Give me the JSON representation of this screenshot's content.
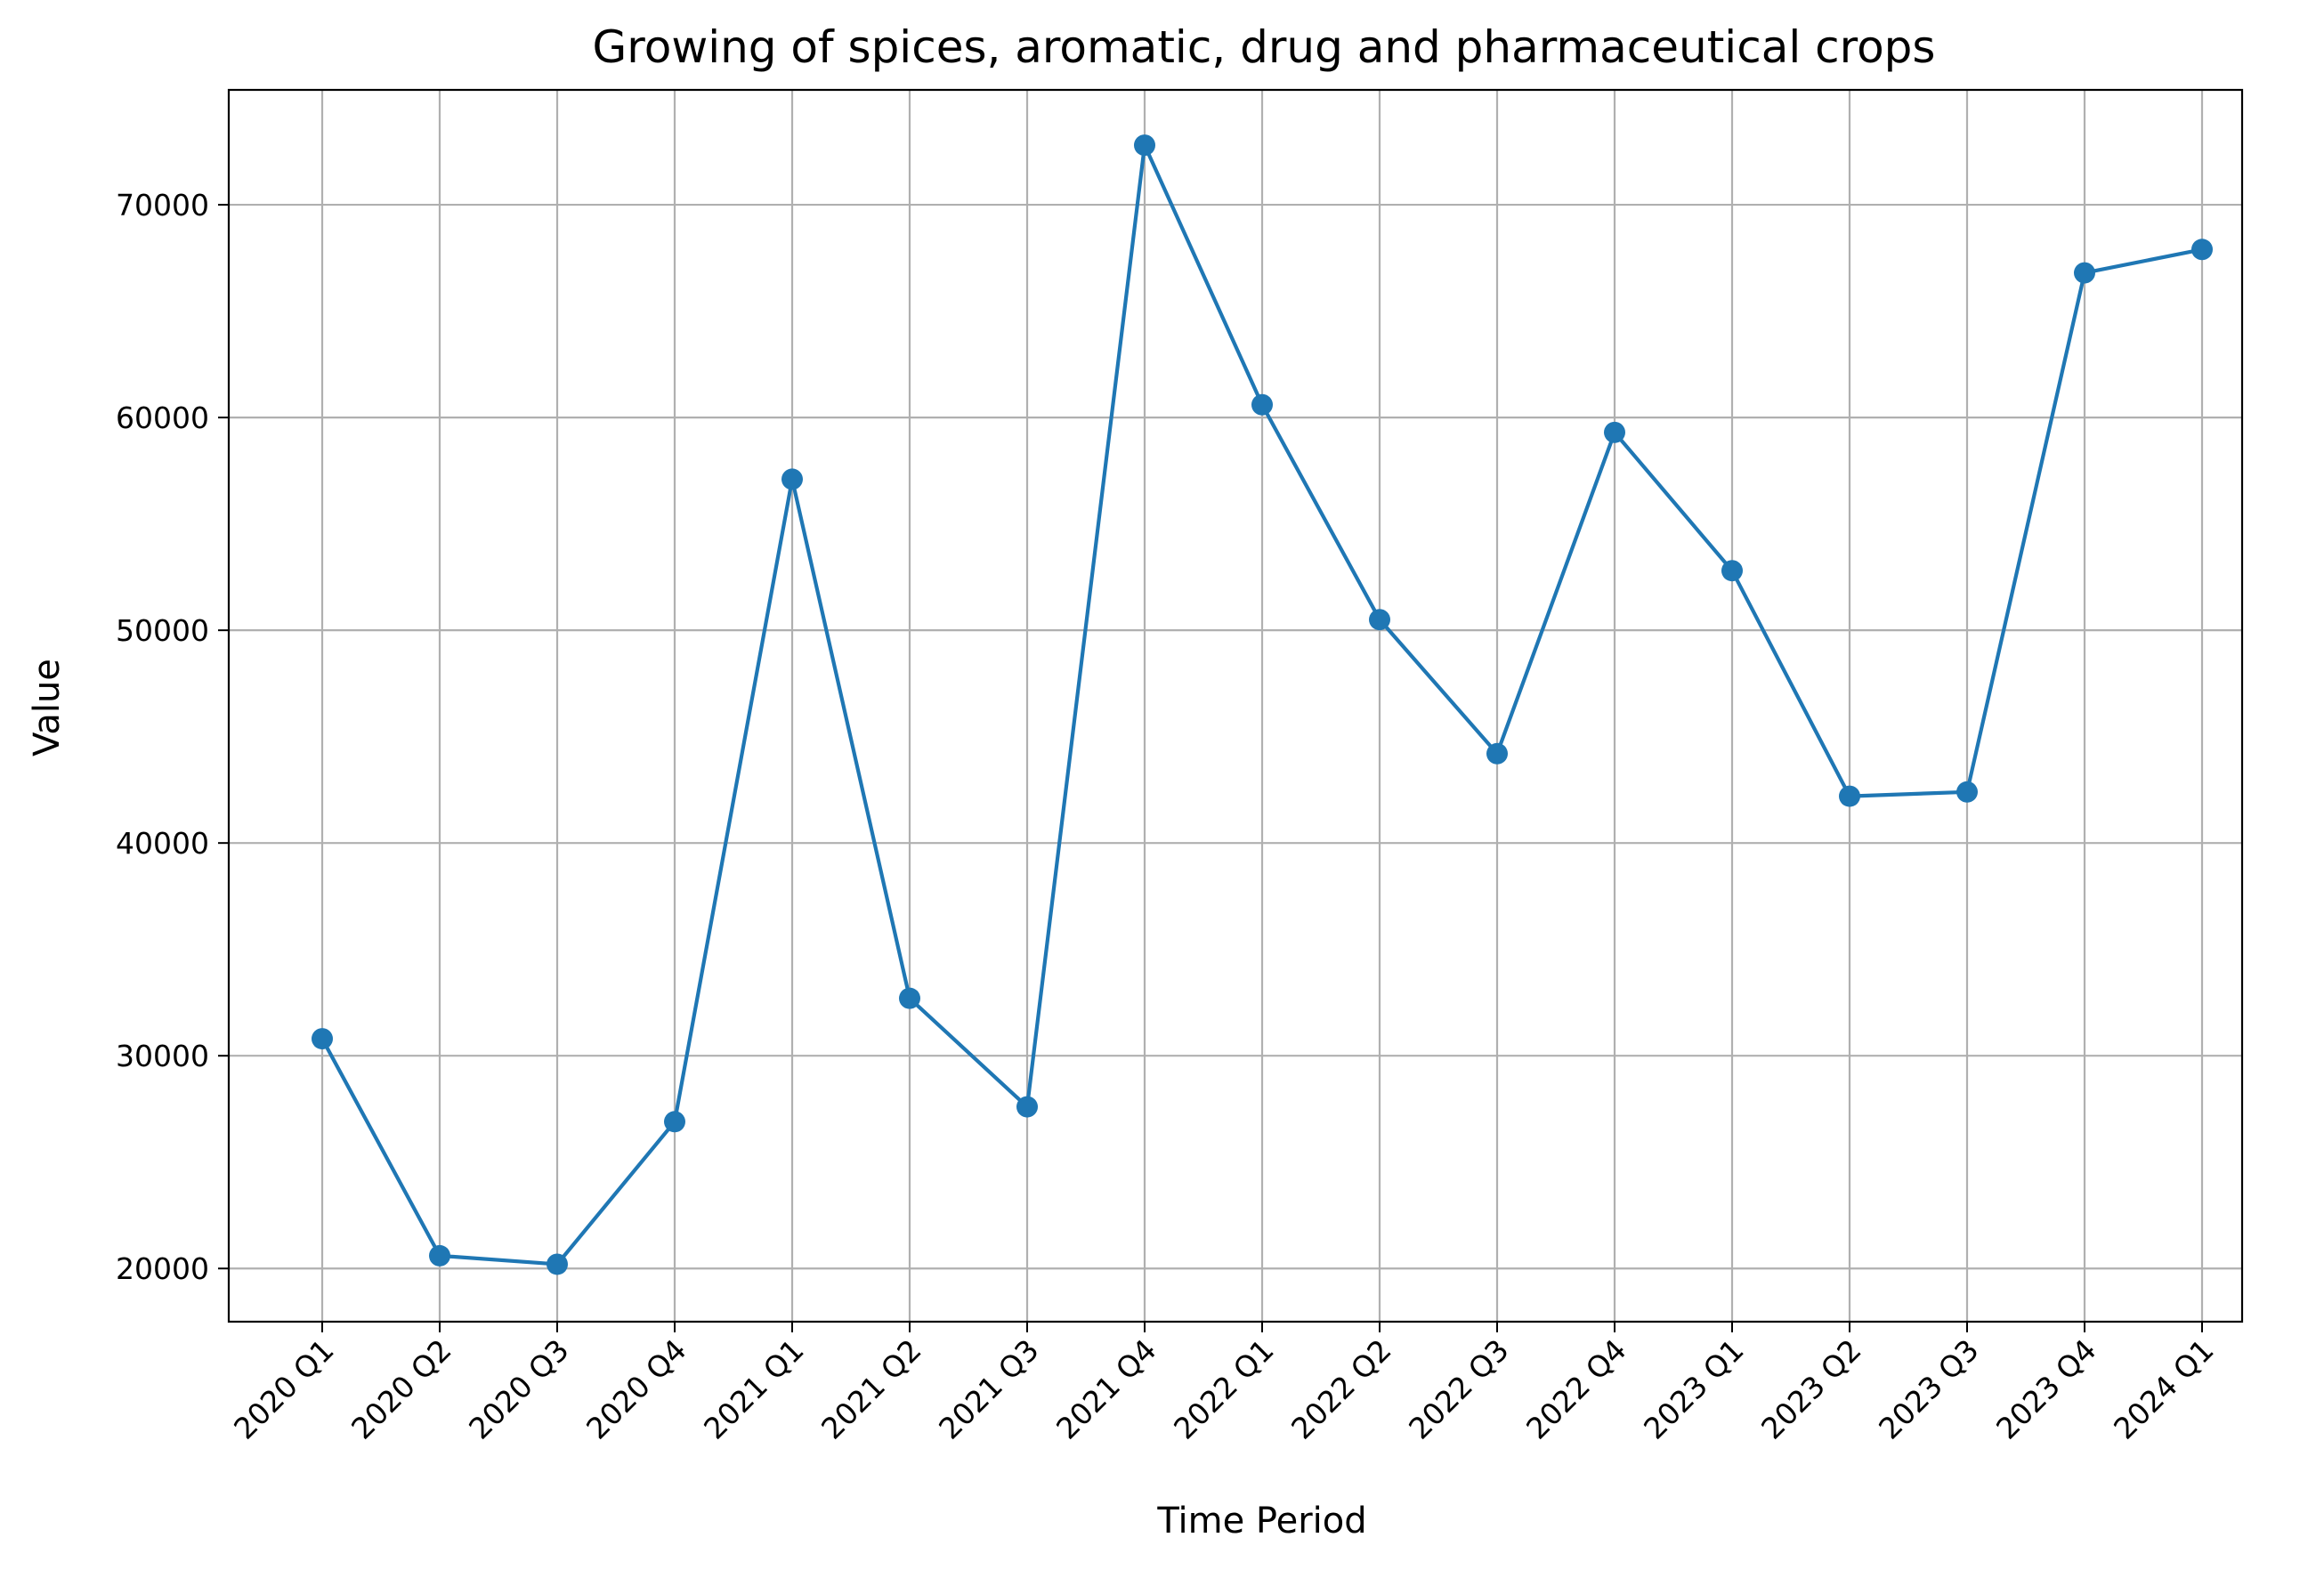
{
  "chart_data": {
    "type": "line",
    "title": "Growing of spices, aromatic, drug and pharmaceutical crops",
    "xlabel": "Time Period",
    "ylabel": "Value",
    "categories": [
      "2020 Q1",
      "2020 Q2",
      "2020 Q3",
      "2020 Q4",
      "2021 Q1",
      "2021 Q2",
      "2021 Q3",
      "2021 Q4",
      "2022 Q1",
      "2022 Q2",
      "2022 Q3",
      "2022 Q4",
      "2023 Q1",
      "2023 Q2",
      "2023 Q3",
      "2023 Q4",
      "2024 Q1"
    ],
    "series": [
      {
        "values": [
          30800,
          20600,
          20200,
          26900,
          57100,
          32700,
          27600,
          72800,
          60600,
          50500,
          44200,
          59300,
          52800,
          42200,
          42400,
          66800,
          67900
        ],
        "color": "#1f77b4"
      }
    ],
    "yticks": [
      20000,
      30000,
      40000,
      50000,
      60000,
      70000
    ],
    "ytick_labels": [
      "20000",
      "30000",
      "40000",
      "50000",
      "60000",
      "70000"
    ],
    "ylim": [
      17500,
      75400
    ],
    "grid": true
  }
}
